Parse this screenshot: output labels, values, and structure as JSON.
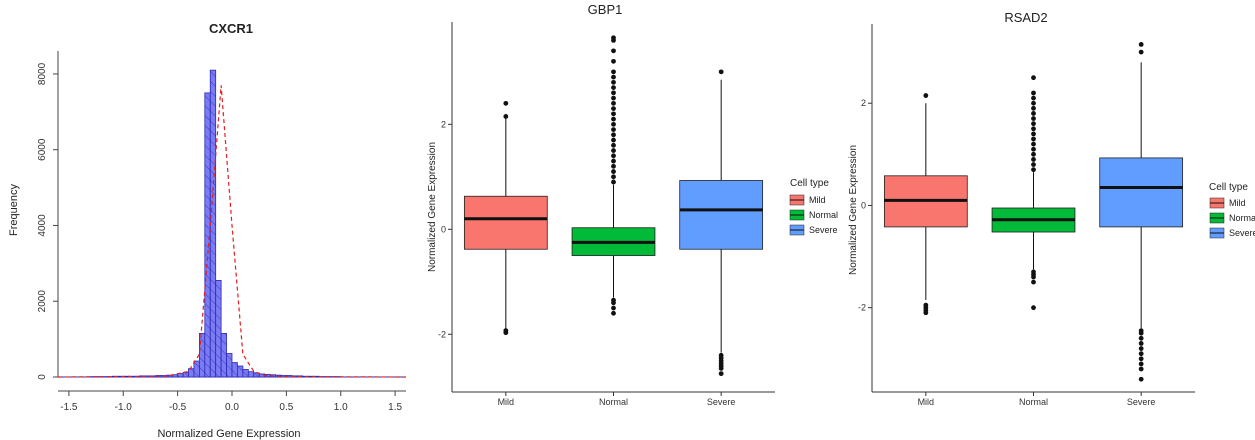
{
  "chart_data": [
    {
      "type": "bar",
      "subtype": "histogram-with-density-line",
      "title": "CXCR1",
      "xlabel": "Normalized Gene Expression",
      "ylabel": "Frequency",
      "xlim": [
        -1.6,
        1.6
      ],
      "ylim": [
        0,
        8500
      ],
      "xticks": [
        "-1.5",
        "-1.0",
        "-0.5",
        "0.0",
        "0.5",
        "1.0",
        "1.5"
      ],
      "yticks": [
        "0",
        "2000",
        "4000",
        "6000",
        "8000"
      ],
      "bin_width": 0.05,
      "bins": [
        {
          "x0": -1.3,
          "x1": -1.25,
          "count": 10
        },
        {
          "x0": -1.25,
          "x1": -1.2,
          "count": 10
        },
        {
          "x0": -1.2,
          "x1": -1.15,
          "count": 10
        },
        {
          "x0": -1.15,
          "x1": -1.1,
          "count": 10
        },
        {
          "x0": -1.1,
          "x1": -1.05,
          "count": 20
        },
        {
          "x0": -1.05,
          "x1": -1.0,
          "count": 20
        },
        {
          "x0": -1.0,
          "x1": -0.95,
          "count": 20
        },
        {
          "x0": -0.95,
          "x1": -0.9,
          "count": 20
        },
        {
          "x0": -0.9,
          "x1": -0.85,
          "count": 20
        },
        {
          "x0": -0.85,
          "x1": -0.8,
          "count": 30
        },
        {
          "x0": -0.8,
          "x1": -0.75,
          "count": 30
        },
        {
          "x0": -0.75,
          "x1": -0.7,
          "count": 30
        },
        {
          "x0": -0.7,
          "x1": -0.65,
          "count": 40
        },
        {
          "x0": -0.65,
          "x1": -0.6,
          "count": 40
        },
        {
          "x0": -0.6,
          "x1": -0.55,
          "count": 50
        },
        {
          "x0": -0.55,
          "x1": -0.5,
          "count": 60
        },
        {
          "x0": -0.5,
          "x1": -0.45,
          "count": 90
        },
        {
          "x0": -0.45,
          "x1": -0.4,
          "count": 120
        },
        {
          "x0": -0.4,
          "x1": -0.35,
          "count": 220
        },
        {
          "x0": -0.35,
          "x1": -0.3,
          "count": 420
        },
        {
          "x0": -0.3,
          "x1": -0.25,
          "count": 1150
        },
        {
          "x0": -0.25,
          "x1": -0.2,
          "count": 7500
        },
        {
          "x0": -0.2,
          "x1": -0.15,
          "count": 8100
        },
        {
          "x0": -0.15,
          "x1": -0.1,
          "count": 2550
        },
        {
          "x0": -0.1,
          "x1": -0.05,
          "count": 1150
        },
        {
          "x0": -0.05,
          "x1": 0.0,
          "count": 620
        },
        {
          "x0": 0.0,
          "x1": 0.05,
          "count": 380
        },
        {
          "x0": 0.05,
          "x1": 0.1,
          "count": 290
        },
        {
          "x0": 0.1,
          "x1": 0.15,
          "count": 200
        },
        {
          "x0": 0.15,
          "x1": 0.2,
          "count": 140
        },
        {
          "x0": 0.2,
          "x1": 0.25,
          "count": 110
        },
        {
          "x0": 0.25,
          "x1": 0.3,
          "count": 80
        },
        {
          "x0": 0.3,
          "x1": 0.35,
          "count": 70
        },
        {
          "x0": 0.35,
          "x1": 0.4,
          "count": 60
        },
        {
          "x0": 0.4,
          "x1": 0.45,
          "count": 50
        },
        {
          "x0": 0.45,
          "x1": 0.5,
          "count": 40
        },
        {
          "x0": 0.5,
          "x1": 0.55,
          "count": 40
        },
        {
          "x0": 0.55,
          "x1": 0.6,
          "count": 30
        },
        {
          "x0": 0.6,
          "x1": 0.65,
          "count": 30
        },
        {
          "x0": 0.65,
          "x1": 0.7,
          "count": 20
        },
        {
          "x0": 0.7,
          "x1": 0.75,
          "count": 20
        },
        {
          "x0": 0.75,
          "x1": 0.8,
          "count": 20
        },
        {
          "x0": 0.8,
          "x1": 0.85,
          "count": 10
        },
        {
          "x0": 0.85,
          "x1": 0.9,
          "count": 10
        },
        {
          "x0": 0.9,
          "x1": 0.95,
          "count": 10
        },
        {
          "x0": 0.95,
          "x1": 1.0,
          "count": 10
        }
      ],
      "density_line": {
        "x": [
          -1.6,
          -0.6,
          -0.4,
          -0.3,
          -0.2,
          -0.1,
          0.0,
          0.1,
          0.2,
          0.3,
          0.5,
          1.6
        ],
        "y": [
          0,
          20,
          150,
          600,
          4000,
          7700,
          4000,
          600,
          150,
          40,
          10,
          0
        ]
      },
      "colors": {
        "bar_fill": "#7b7bf2",
        "bar_edge": "#2a2ab8",
        "density": "#e02020"
      },
      "grid": false,
      "legend": "none"
    },
    {
      "type": "box",
      "title": "GBP1",
      "xlabel": "",
      "ylabel": "Normalized Gene Expression",
      "categories": [
        "Mild",
        "Normal",
        "Severe"
      ],
      "ylim": [
        -3.1,
        3.95
      ],
      "yticks": [
        "-2",
        "0",
        "2"
      ],
      "legend_title": "Cell type",
      "legend": "right",
      "series": [
        {
          "name": "Mild",
          "color": "#f8766d",
          "q1": -0.38,
          "median": 0.2,
          "q3": 0.63,
          "whisker_low": -1.9,
          "whisker_high": 2.2,
          "outliers": [
            2.4,
            2.15,
            -1.93,
            -1.97
          ]
        },
        {
          "name": "Normal",
          "color": "#00ba38",
          "q1": -0.5,
          "median": -0.25,
          "q3": 0.03,
          "whisker_low": -1.3,
          "whisker_high": 0.85,
          "outliers": [
            -1.35,
            -1.4,
            -1.5,
            -1.6,
            0.9,
            1.0,
            1.1,
            1.2,
            1.3,
            1.4,
            1.5,
            1.6,
            1.7,
            1.8,
            1.9,
            2.0,
            2.1,
            2.2,
            2.3,
            2.4,
            2.5,
            2.6,
            2.7,
            2.8,
            2.9,
            3.0,
            3.2,
            3.4,
            3.6,
            3.65
          ]
        },
        {
          "name": "Severe",
          "color": "#619cff",
          "q1": -0.38,
          "median": 0.37,
          "q3": 0.93,
          "whisker_low": -2.35,
          "whisker_high": 2.85,
          "outliers": [
            3.0,
            -2.4,
            -2.45,
            -2.5,
            -2.55,
            -2.6,
            -2.65,
            -2.75
          ]
        }
      ],
      "grid": false
    },
    {
      "type": "box",
      "title": "RSAD2",
      "xlabel": "",
      "ylabel": "Normalized Gene Expression",
      "categories": [
        "Mild",
        "Normal",
        "Severe"
      ],
      "ylim": [
        -3.65,
        3.55
      ],
      "yticks": [
        "-2",
        "0",
        "2"
      ],
      "legend_title": "Cell type",
      "legend": "right",
      "series": [
        {
          "name": "Mild",
          "color": "#f8766d",
          "q1": -0.42,
          "median": 0.1,
          "q3": 0.58,
          "whisker_low": -1.85,
          "whisker_high": 2.0,
          "outliers": [
            2.15,
            -1.95,
            -2.0,
            -2.05,
            -2.1
          ]
        },
        {
          "name": "Normal",
          "color": "#00ba38",
          "q1": -0.52,
          "median": -0.28,
          "q3": -0.05,
          "whisker_low": -1.25,
          "whisker_high": 0.65,
          "outliers": [
            -1.3,
            -1.35,
            -1.4,
            -1.5,
            -2.0,
            0.7,
            0.8,
            0.9,
            1.0,
            1.1,
            1.2,
            1.3,
            1.4,
            1.5,
            1.6,
            1.7,
            1.8,
            1.9,
            2.0,
            2.1,
            2.2,
            2.5
          ]
        },
        {
          "name": "Severe",
          "color": "#619cff",
          "q1": -0.42,
          "median": 0.35,
          "q3": 0.93,
          "whisker_low": -2.4,
          "whisker_high": 2.8,
          "outliers": [
            3.0,
            3.15,
            -2.45,
            -2.5,
            -2.6,
            -2.7,
            -2.8,
            -2.9,
            -3.0,
            -3.1,
            -3.2,
            -3.4
          ]
        }
      ],
      "grid": false
    }
  ]
}
